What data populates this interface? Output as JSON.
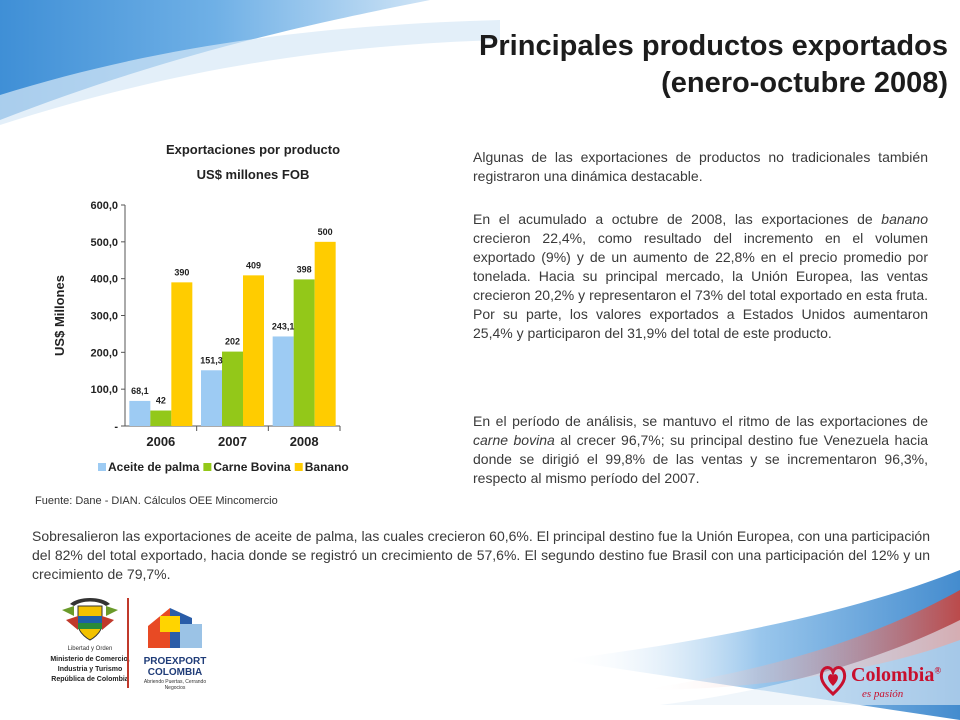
{
  "header": {
    "title_line1": "Principales productos exportados",
    "title_line2": "(enero-octubre 2008)"
  },
  "chart_data": {
    "type": "bar",
    "title": "Exportaciones por producto",
    "subtitle": "US$ millones FOB",
    "ylabel": "US$ Millones",
    "categories": [
      "2006",
      "2007",
      "2008"
    ],
    "ylim": [
      0,
      600
    ],
    "yticks": [
      "-",
      "100,0",
      "200,0",
      "300,0",
      "400,0",
      "500,0",
      "600,0"
    ],
    "legend_position": "bottom",
    "series": [
      {
        "name": "Aceite de palma",
        "values": [
          68.1,
          151.3,
          243.1
        ],
        "labels": [
          "68,1",
          "151,3",
          "243,1"
        ],
        "color": "#9dcbf3"
      },
      {
        "name": "Carne Bovina",
        "values": [
          42,
          202,
          398
        ],
        "labels": [
          "42",
          "202",
          "398"
        ],
        "color": "#93c819"
      },
      {
        "name": "Banano",
        "values": [
          390,
          409,
          500
        ],
        "labels": [
          "390",
          "409",
          "500"
        ],
        "color": "#ffcc00"
      }
    ]
  },
  "source": "Fuente: Dane - DIAN. Cálculos OEE Mincomercio",
  "paragraphs": {
    "p1": "Algunas de las exportaciones de productos no tradicionales también registraron una dinámica destacable.",
    "p2_a": "En el acumulado a octubre de 2008, las exportaciones de ",
    "p2_em": "banano",
    "p2_b": " crecieron 22,4%, como resultado del incremento en el volumen exportado (9%) y de un aumento de 22,8% en el precio promedio por tonelada. Hacia su principal mercado, la Unión Europea, las ventas crecieron 20,2% y representaron el 73% del total exportado en esta fruta. Por su parte, los valores exportados a Estados Unidos aumentaron 25,4% y participaron del 31,9% del total de este producto.",
    "p3_a": "En el período de análisis, se mantuvo el ritmo de las exportaciones de ",
    "p3_em": "carne bovina",
    "p3_b": " al crecer 96,7%; su principal destino fue Venezuela hacia donde se dirigió el 99,8% de las ventas y se incrementaron 96,3%, respecto al mismo período del 2007.",
    "p4": "Sobresalieron las exportaciones de aceite de palma, las cuales crecieron 60,6%. El principal destino fue la Unión Europea, con una participación del 82% del total exportado, hacia donde se registró un crecimiento de 57,6%. El segundo destino fue Brasil con una participación del 12% y un crecimiento de 79,7%."
  },
  "logos": {
    "ministry_motto": "Libertad y Orden",
    "ministry_line1": "Ministerio de Comercio,",
    "ministry_line2": "Industria y Turismo",
    "ministry_line3": "República de Colombia",
    "proexport_name": "PROEXPORT",
    "proexport_country": "COLOMBIA",
    "proexport_tagline": "Abriendo Puertas, Cerrando Negocios",
    "colombia_brand": "Colombia",
    "colombia_reg": "®",
    "colombia_tagline": "es pasión"
  },
  "colors": {
    "accent_blue": "#1e6fb5",
    "accent_red": "#d42a2a",
    "brand_red": "#c8102e"
  }
}
